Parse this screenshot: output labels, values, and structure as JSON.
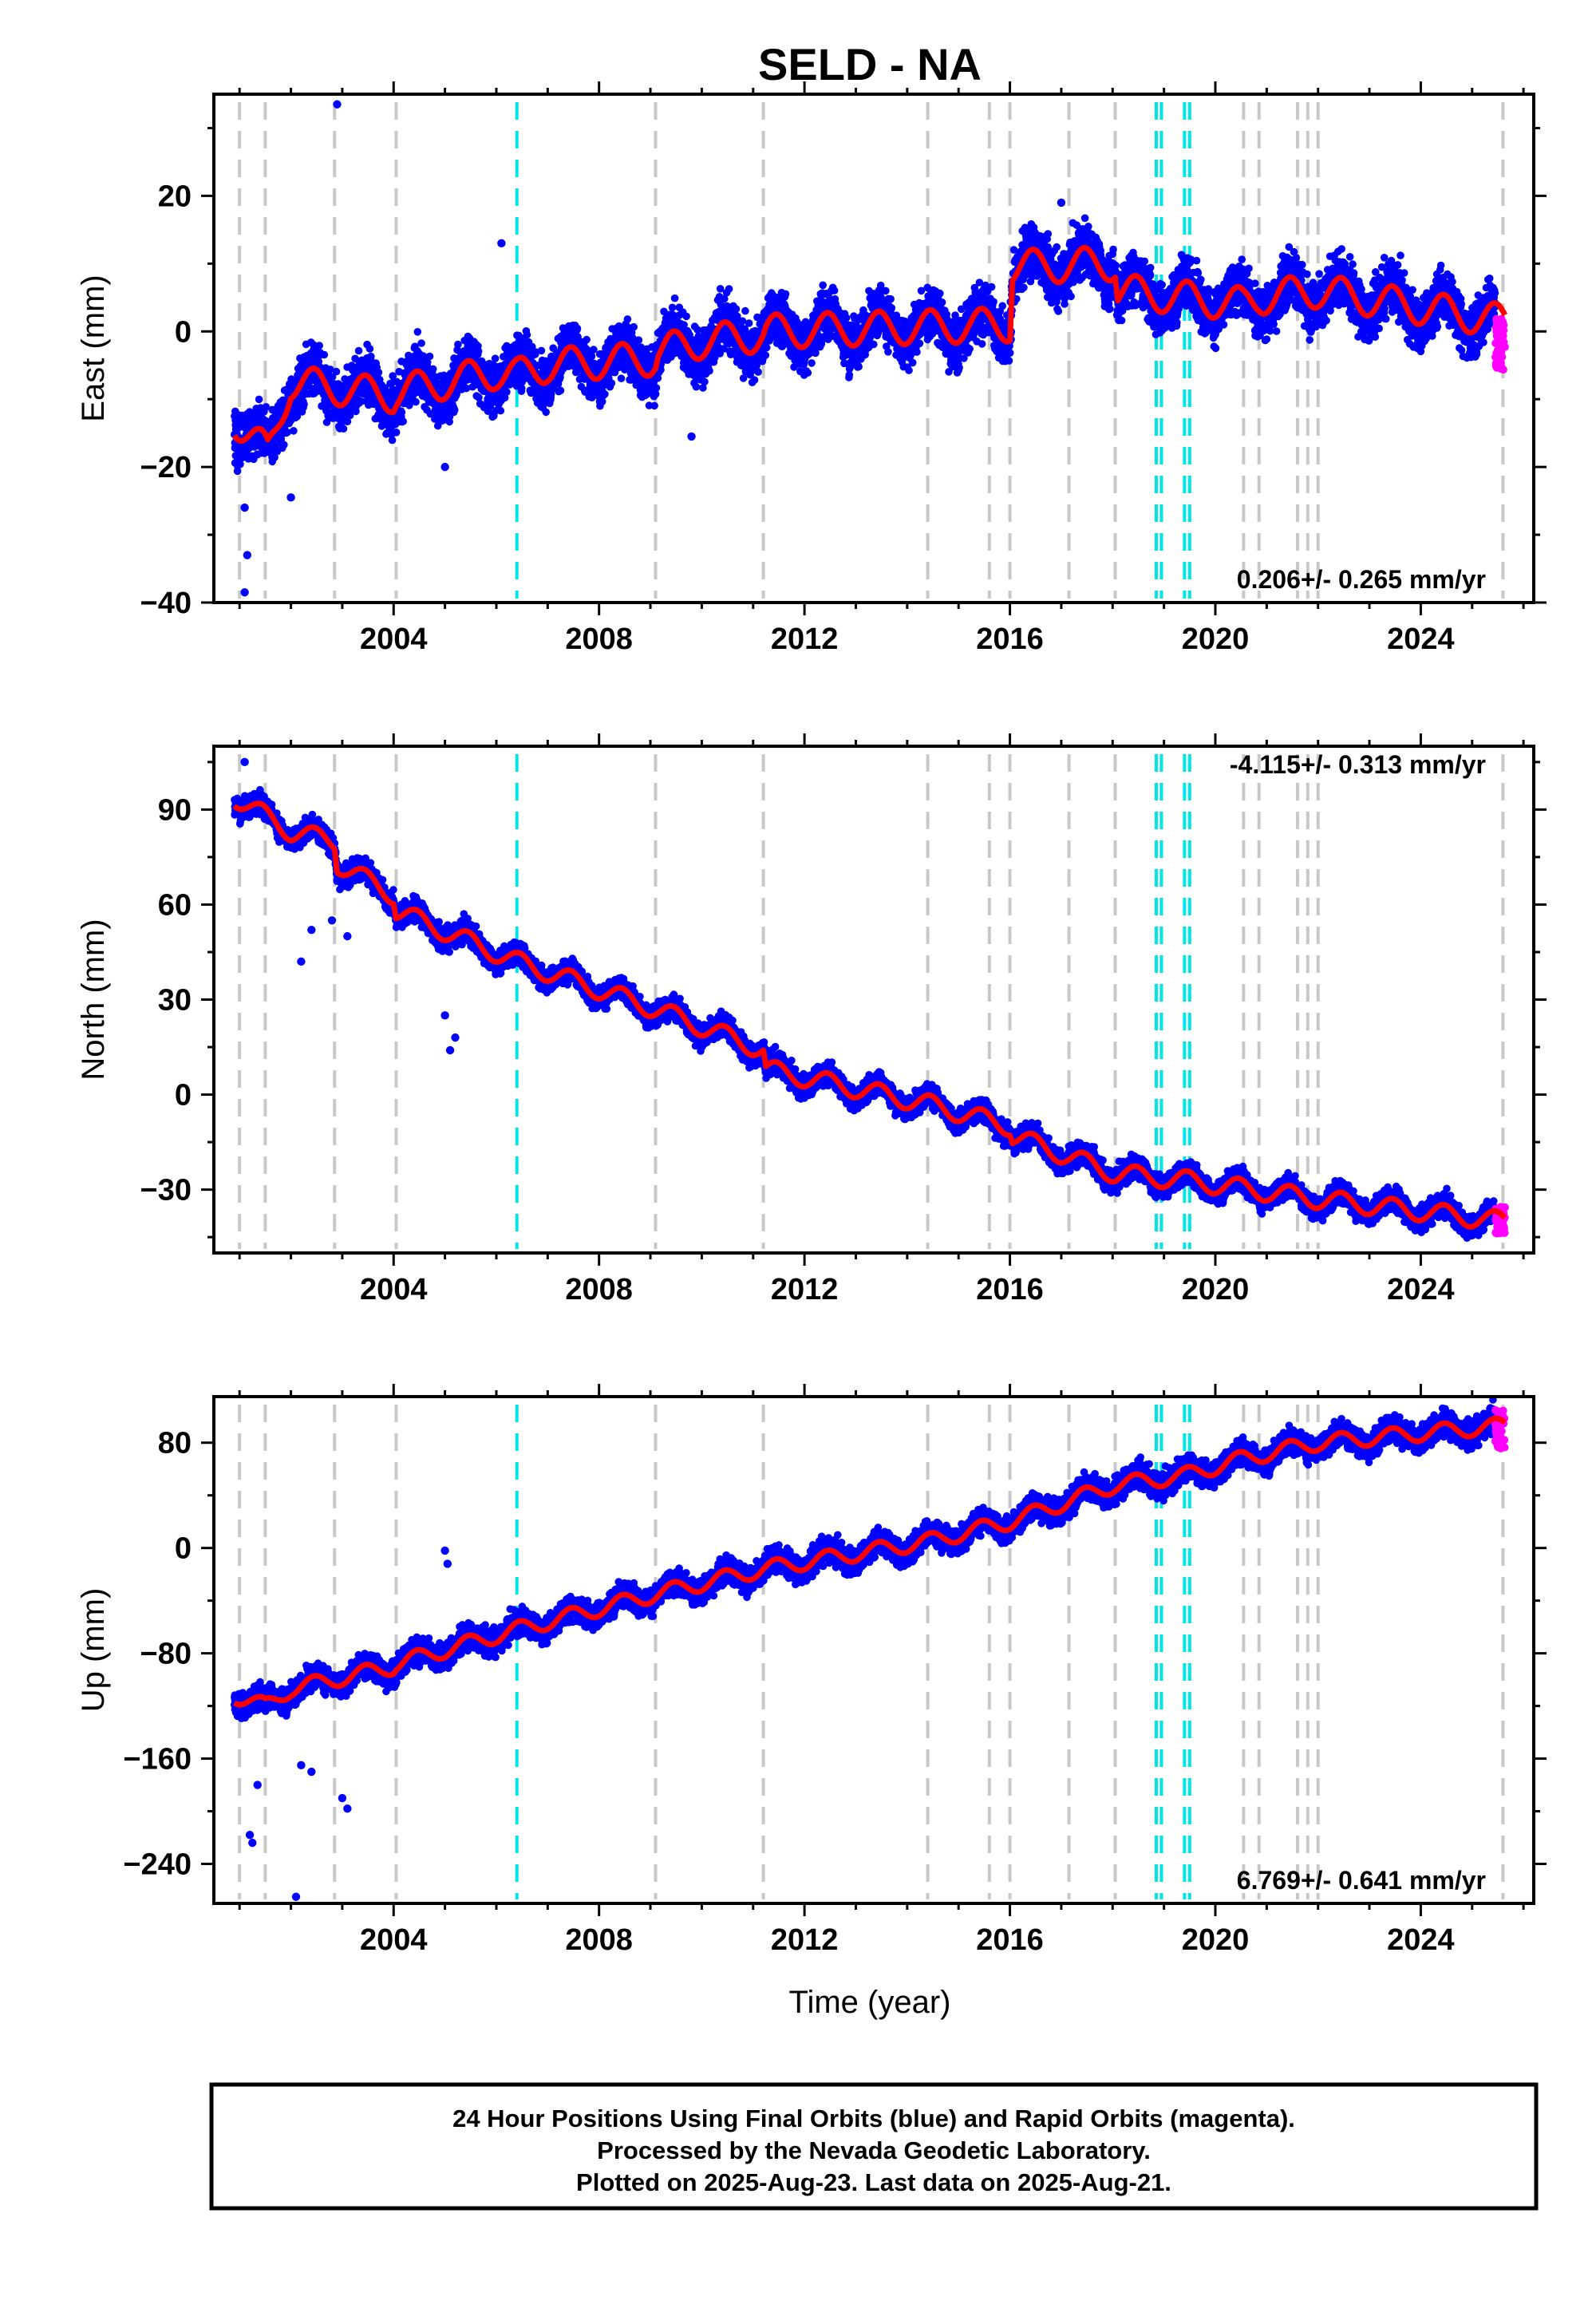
{
  "chart_data": {
    "type": "scatter",
    "title": "SELD - NA",
    "x_range": [
      2000.5,
      2026.2
    ],
    "x_ticks": [
      2004,
      2008,
      2012,
      2016,
      2020,
      2024
    ],
    "xlabel": "Time (year)",
    "data_start": 2000.9,
    "data_end": 2025.64,
    "rapid_start": 2025.45,
    "colors": {
      "final": "#0000ff",
      "rapid": "#ff00ff",
      "model": "#ff0000",
      "equipment_change": "#c8c8c8",
      "earthquake": "#00e5e5"
    },
    "equipment_changes": [
      2001.0,
      2001.5,
      2002.85,
      2004.05,
      2009.1,
      2011.2,
      2014.4,
      2015.6,
      2016.0,
      2017.15,
      2018.05,
      2020.55,
      2020.85,
      2021.6,
      2021.8,
      2022.0,
      2025.6
    ],
    "earthquakes": [
      2006.4,
      2018.85,
      2018.95,
      2019.4,
      2019.5
    ],
    "panels": [
      {
        "key": "east",
        "ylabel": "East (mm)",
        "ylim": [
          -40,
          35
        ],
        "yticks": [
          -40,
          -20,
          0,
          20
        ],
        "rate": "0.206+/- 0.265 mm/yr",
        "rate_pos": "bottom-right",
        "model": [
          [
            2000.9,
            -13
          ],
          [
            2001.5,
            -17.5
          ],
          [
            2001.55,
            -18
          ],
          [
            2002.0,
            -7.5
          ],
          [
            2004.0,
            -9.5
          ],
          [
            2004.05,
            -9
          ],
          [
            2006.0,
            -6
          ],
          [
            2006.4,
            -6.5
          ],
          [
            2007.0,
            -5
          ],
          [
            2009.1,
            -4
          ],
          [
            2009.15,
            -3
          ],
          [
            2010.0,
            -1.5
          ],
          [
            2011.2,
            -0.5
          ],
          [
            2011.25,
            0
          ],
          [
            2016.0,
            1
          ],
          [
            2016.05,
            9.5
          ],
          [
            2018.05,
            10
          ],
          [
            2018.1,
            6
          ],
          [
            2020.55,
            4
          ],
          [
            2020.85,
            5
          ],
          [
            2022.0,
            6
          ],
          [
            2025.6,
            1.5
          ]
        ],
        "amp": 2.5,
        "noise": 2.8,
        "outliers": [
          [
            2001.1,
            -38.5
          ],
          [
            2001.15,
            -33
          ],
          [
            2001.1,
            -26
          ],
          [
            2002.0,
            -24.5
          ],
          [
            2002.9,
            33.5
          ],
          [
            2006.1,
            13
          ],
          [
            2009.8,
            -15.5
          ],
          [
            2017.0,
            19
          ],
          [
            2005.0,
            -20
          ]
        ],
        "rapid_range": [
          -6,
          2
        ]
      },
      {
        "key": "north",
        "ylabel": "North (mm)",
        "ylim": [
          -50,
          110
        ],
        "yticks": [
          -30,
          0,
          30,
          60,
          90
        ],
        "rate": "-4.115+/- 0.313 mm/yr",
        "rate_pos": "top-right",
        "model": [
          [
            2000.9,
            94
          ],
          [
            2002.0,
            83
          ],
          [
            2002.85,
            80
          ],
          [
            2002.9,
            73
          ],
          [
            2004.0,
            63
          ],
          [
            2004.05,
            58
          ],
          [
            2006.4,
            42
          ],
          [
            2009.1,
            27
          ],
          [
            2011.2,
            14
          ],
          [
            2011.25,
            8
          ],
          [
            2014.4,
            -3
          ],
          [
            2016.0,
            -10
          ],
          [
            2016.05,
            -13
          ],
          [
            2018.05,
            -25
          ],
          [
            2019.4,
            -27
          ],
          [
            2022.0,
            -33
          ],
          [
            2025.6,
            -40
          ]
        ],
        "amp": 3,
        "noise": 2.6,
        "outliers": [
          [
            2001.1,
            105
          ],
          [
            2002.2,
            42
          ],
          [
            2002.4,
            52
          ],
          [
            2002.8,
            55
          ],
          [
            2005.1,
            14
          ],
          [
            2005.2,
            18
          ],
          [
            2005.0,
            25
          ],
          [
            2003.1,
            50
          ]
        ],
        "rapid_range": [
          -44,
          -35
        ]
      },
      {
        "key": "up",
        "ylabel": "Up (mm)",
        "ylim": [
          -270,
          115
        ],
        "yticks": [
          -240,
          -160,
          -80,
          0,
          80
        ],
        "rate": "6.769+/- 0.641 mm/yr",
        "rate_pos": "bottom-right",
        "model": [
          [
            2000.9,
            -112
          ],
          [
            2001.5,
            -120
          ],
          [
            2002.0,
            -107
          ],
          [
            2004.0,
            -90
          ],
          [
            2004.05,
            -88
          ],
          [
            2006.4,
            -62
          ],
          [
            2009.1,
            -35
          ],
          [
            2011.2,
            -16
          ],
          [
            2014.4,
            5
          ],
          [
            2016.0,
            20
          ],
          [
            2018.05,
            48
          ],
          [
            2019.4,
            55
          ],
          [
            2020.55,
            68
          ],
          [
            2022.0,
            80
          ],
          [
            2025.6,
            93
          ]
        ],
        "amp": 6,
        "noise": 7,
        "outliers": [
          [
            2001.2,
            -218
          ],
          [
            2001.25,
            -224
          ],
          [
            2001.35,
            -180
          ],
          [
            2002.1,
            -265
          ],
          [
            2003.0,
            -190
          ],
          [
            2003.1,
            -198
          ],
          [
            2005.0,
            -2
          ],
          [
            2005.05,
            -12
          ],
          [
            2002.2,
            -165
          ],
          [
            2002.4,
            -170
          ]
        ],
        "rapid_range": [
          75,
          105
        ]
      }
    ]
  },
  "footer": {
    "line1": "24 Hour Positions Using Final Orbits (blue) and Rapid Orbits (magenta).",
    "line2": "Processed by the Nevada Geodetic Laboratory.",
    "line3": "Plotted on 2025-Aug-23. Last data on 2025-Aug-21."
  }
}
